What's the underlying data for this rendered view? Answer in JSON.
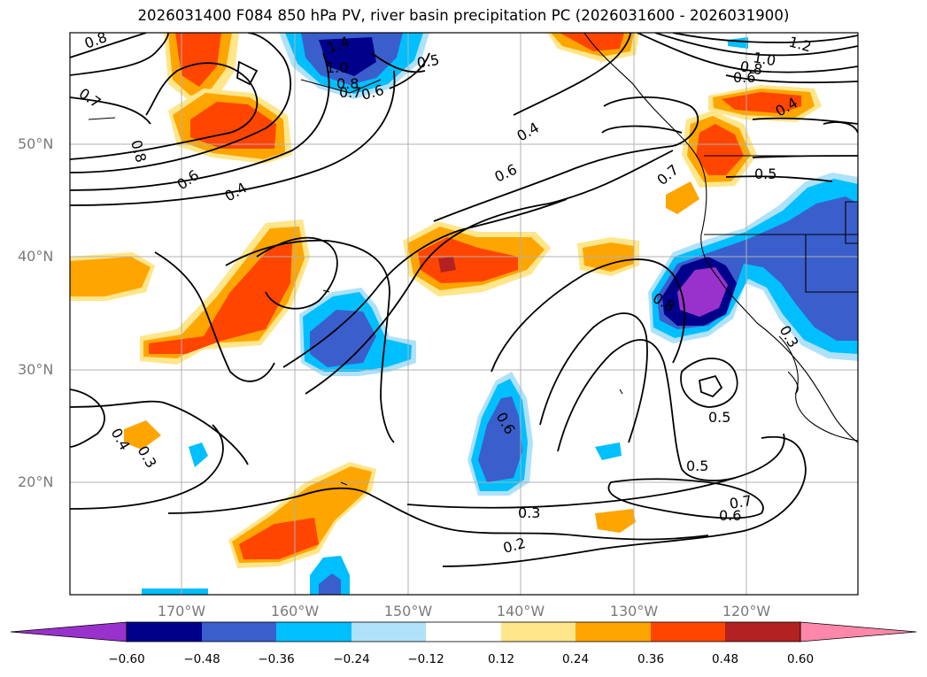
{
  "title": "2026031400 F084 850 hPa PV, river basin precipitation PC (2026031600 - 2026031900)",
  "lat_labels": [
    "50°N",
    "40°N",
    "30°N",
    "20°N"
  ],
  "lon_labels": [
    "170°W",
    "160°W",
    "150°W",
    "140°W",
    "130°W",
    "120°W"
  ],
  "colorbar": {
    "ticks": [
      "−0.60",
      "−0.48",
      "−0.36",
      "−0.24",
      "−0.12",
      "0.12",
      "0.24",
      "0.36",
      "0.48",
      "0.60"
    ],
    "colors": [
      "#9932cc",
      "#00008b",
      "#3a5fcd",
      "#00bfff",
      "#afe1fa",
      "#ffffff",
      "#ffe68a",
      "#ffa500",
      "#ff4500",
      "#b22222",
      "#ff88aa"
    ]
  },
  "contour_labels": [
    "0.8",
    "0.7",
    "0.8",
    "0.6",
    "0.4",
    "1.4",
    "1.0",
    "0.8",
    "0.7",
    "0.6",
    "0.5",
    "0.4",
    "0.6",
    "1.2",
    "1.0",
    "0.8",
    "0.6",
    "0.4",
    "0.7",
    "0.5",
    "0.8",
    "0.3",
    "0.4",
    "0.3",
    "0.6",
    "0.5",
    "0.5",
    "0.3",
    "0.2",
    "0.7",
    "0.6"
  ],
  "colors": {
    "contour": "#000000",
    "grid": "#b0b0b0",
    "axis_label": "#7a7a7a"
  }
}
